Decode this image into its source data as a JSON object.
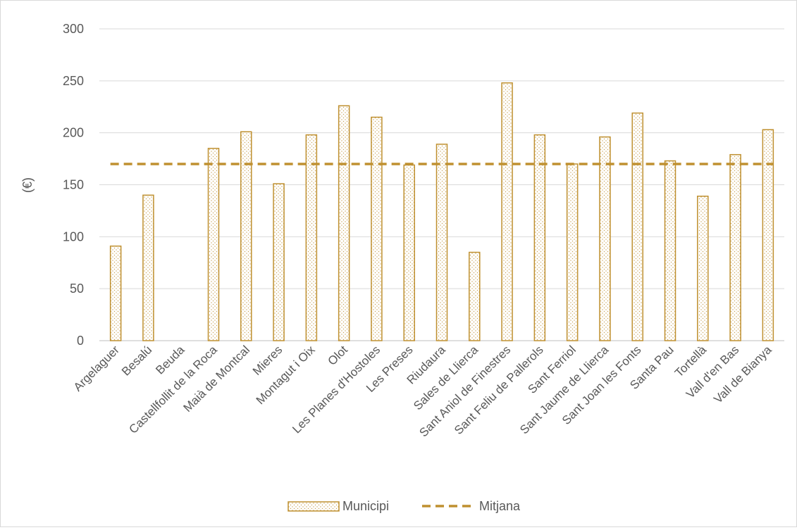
{
  "chart_data": {
    "type": "bar",
    "title": "",
    "xlabel": "",
    "ylabel": "(€)",
    "ylim": [
      0,
      300
    ],
    "yticks": [
      0,
      50,
      100,
      150,
      200,
      250,
      300
    ],
    "grid": true,
    "legend_position": "bottom",
    "categories": [
      "Argelaguer",
      "Besalú",
      "Beuda",
      "Castellfollit de la Roca",
      "Maià de Montcal",
      "Mieres",
      "Montagut i Oix",
      "Olot",
      "Les Planes d'Hostoles",
      "Les Preses",
      "Riudaura",
      "Sales de Llierca",
      "Sant Aniol de Finestres",
      "Sant Feliu de Pallerols",
      "Sant Ferriol",
      "Sant Jaume de Llierca",
      "Sant Joan les Fonts",
      "Santa Pau",
      "Tortellà",
      "Vall d'en Bas",
      "Vall de Bianya"
    ],
    "series": [
      {
        "name": "Municipi",
        "type": "bar",
        "color": "#bf9030",
        "values": [
          91,
          140,
          null,
          185,
          201,
          151,
          198,
          226,
          215,
          169,
          189,
          85,
          248,
          198,
          170,
          196,
          219,
          173,
          139,
          179,
          203
        ]
      },
      {
        "name": "Mitjana",
        "type": "line",
        "style": "dashed",
        "color": "#bf9030",
        "value": 170
      }
    ]
  }
}
